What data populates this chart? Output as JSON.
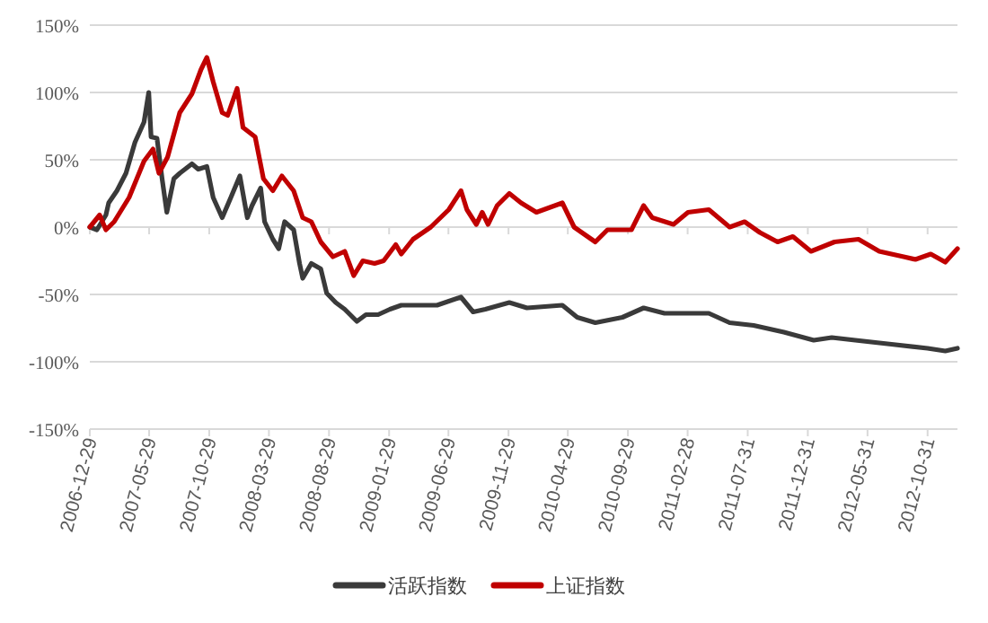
{
  "chart_data": {
    "type": "line",
    "x": [
      "2006-12-29",
      "2007-01-16",
      "2007-02-08",
      "2007-02-15",
      "2007-03-08",
      "2007-03-31",
      "2007-04-23",
      "2007-05-16",
      "2007-05-28",
      "2007-06-03",
      "2007-06-18",
      "2007-07-01",
      "2007-07-13",
      "2007-07-31",
      "2007-08-15",
      "2007-09-15",
      "2007-10-01",
      "2007-10-23",
      "2007-11-08",
      "2007-12-01",
      "2007-12-23",
      "2008-01-15",
      "2008-02-03",
      "2008-02-15",
      "2008-03-08",
      "2008-03-18",
      "2008-04-08",
      "2008-04-23",
      "2008-05-08",
      "2008-05-31",
      "2008-06-15",
      "2008-06-23",
      "2008-07-15",
      "2008-08-08",
      "2008-08-23",
      "2008-09-15",
      "2008-10-08",
      "2008-11-08",
      "2008-12-01",
      "2009-01-01",
      "2009-01-31",
      "2009-03-01",
      "2009-04-15",
      "2009-05-31",
      "2009-07-31",
      "2009-08-31",
      "2009-10-01",
      "2009-12-01",
      "2010-01-15",
      "2010-04-15",
      "2010-05-23",
      "2010-07-08",
      "2010-09-15",
      "2010-11-08",
      "2010-12-31",
      "2011-03-01",
      "2011-04-23",
      "2011-06-15",
      "2011-08-15",
      "2011-10-31",
      "2012-01-15",
      "2012-03-01",
      "2012-04-30",
      "2012-07-31",
      "2012-10-31",
      "2012-12-15",
      "2013-01-15"
    ],
    "series": [
      {
        "name": "活跃指数",
        "color": "#3a3a3a",
        "values": [
          0,
          -2,
          9,
          18,
          27,
          40,
          63,
          78,
          100,
          67,
          66,
          36,
          11,
          36,
          40,
          47,
          43,
          45,
          22,
          7,
          22,
          38,
          7,
          16,
          29,
          4,
          -9,
          -16,
          4,
          -2,
          -27,
          -38,
          -27,
          -31,
          -49,
          -56,
          -61,
          -70,
          -65,
          -65,
          -61,
          -58,
          -58,
          -58,
          -52,
          -63,
          -61,
          -56,
          -60,
          -58,
          -67,
          -71,
          -67,
          -60,
          -64,
          -64,
          -64,
          -71,
          -73,
          -78,
          -84,
          -82,
          -84,
          -87,
          -90,
          -92,
          -90
        ]
      },
      {
        "name": "上证指数",
        "color": "#c00000",
        "x": [
          "2006-12-29",
          "2007-01-23",
          "2007-02-08",
          "2007-03-01",
          "2007-04-08",
          "2007-05-16",
          "2007-06-08",
          "2007-06-23",
          "2007-07-15",
          "2007-08-15",
          "2007-09-15",
          "2007-10-08",
          "2007-10-23",
          "2007-11-08",
          "2007-12-01",
          "2007-12-15",
          "2008-01-08",
          "2008-01-23",
          "2008-02-23",
          "2008-03-15",
          "2008-04-08",
          "2008-05-01",
          "2008-05-31",
          "2008-06-23",
          "2008-07-15",
          "2008-08-08",
          "2008-09-08",
          "2008-10-08",
          "2008-10-31",
          "2008-11-23",
          "2008-12-23",
          "2009-01-15",
          "2009-02-15",
          "2009-03-01",
          "2009-03-31",
          "2009-05-15",
          "2009-06-30",
          "2009-07-31",
          "2009-08-15",
          "2009-09-08",
          "2009-09-23",
          "2009-10-08",
          "2009-10-31",
          "2009-12-01",
          "2009-12-31",
          "2010-02-08",
          "2010-04-15",
          "2010-05-15",
          "2010-07-08",
          "2010-08-08",
          "2010-10-08",
          "2010-11-08",
          "2010-11-30",
          "2011-01-23",
          "2011-03-01",
          "2011-04-23",
          "2011-06-15",
          "2011-07-23",
          "2011-08-31",
          "2011-10-15",
          "2011-11-23",
          "2012-01-08",
          "2012-03-08",
          "2012-05-08",
          "2012-06-30",
          "2012-08-31",
          "2012-09-30",
          "2012-11-08",
          "2012-12-15",
          "2013-01-15"
        ],
        "values": [
          0,
          9,
          -2,
          4,
          22,
          49,
          58,
          40,
          52,
          85,
          99,
          117,
          126,
          108,
          85,
          83,
          103,
          74,
          67,
          36,
          27,
          38,
          27,
          7,
          4,
          -11,
          -22,
          -18,
          -36,
          -25,
          -27,
          -25,
          -13,
          -20,
          -9,
          0,
          13,
          27,
          13,
          2,
          11,
          2,
          16,
          25,
          18,
          11,
          18,
          0,
          -11,
          -2,
          -2,
          16,
          7,
          2,
          11,
          13,
          0,
          4,
          -4,
          -11,
          -7,
          -18,
          -11,
          -9,
          -18,
          -22,
          -24,
          -20,
          -26,
          -16
        ]
      }
    ],
    "xlim": [
      "2006-12-29",
      "2013-01-15"
    ],
    "xticks": [
      "2006-12-29",
      "2007-05-29",
      "2007-10-29",
      "2008-03-29",
      "2008-08-29",
      "2009-01-29",
      "2009-06-29",
      "2009-11-29",
      "2010-04-29",
      "2010-09-29",
      "2011-02-28",
      "2011-07-31",
      "2011-12-31",
      "2012-05-31",
      "2012-10-31"
    ],
    "ylim": [
      -150,
      150
    ],
    "yticks": [
      {
        "value": -150,
        "label": "-150%"
      },
      {
        "value": -100,
        "label": "-100%"
      },
      {
        "value": -50,
        "label": "-50%"
      },
      {
        "value": 0,
        "label": "0%"
      },
      {
        "value": 50,
        "label": "50%"
      },
      {
        "value": 100,
        "label": "100%"
      },
      {
        "value": 150,
        "label": "150%"
      }
    ],
    "grid": "y",
    "legend": "bottom"
  }
}
